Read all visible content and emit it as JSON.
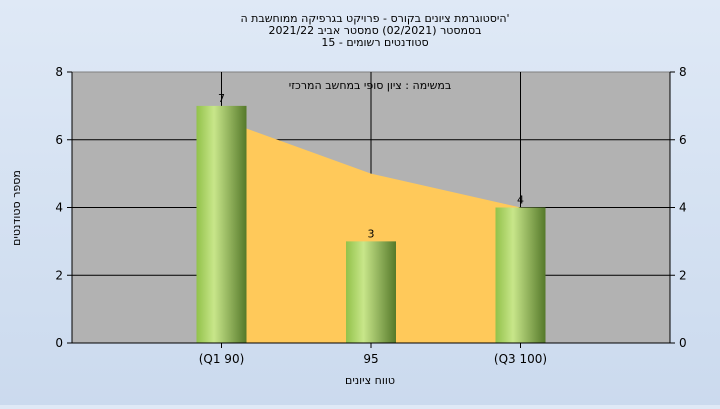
{
  "chart_data": {
    "type": "bar",
    "title_lines": [
      "היסטוגרמת ציונים בקורס - פרויקט בגרפיקה ממוחשבת ה'",
      "בסמסטר (02/2021) סמסטר אביב 2021/22",
      "סטודנטים רשומים - 15"
    ],
    "annotation": "במשימה : ציון סופי במחשב המרכזי",
    "xlabel": "טווח ציונים",
    "ylabel": "מספר סטודנטים",
    "categories": [
      "(Q1 90)",
      "95",
      "(Q3 100)"
    ],
    "values": [
      7,
      3,
      4
    ],
    "area_values": [
      6.6,
      5,
      4
    ],
    "ylim": [
      0,
      8
    ],
    "yticks": [
      0,
      2,
      4,
      6,
      8
    ],
    "grid": true,
    "colors": {
      "plot_bg": "#b2b2b2",
      "area": "#ffc95a",
      "bar_light": "#c8e68a",
      "bar_mid": "#92c24a",
      "bar_dark": "#55792a"
    }
  }
}
